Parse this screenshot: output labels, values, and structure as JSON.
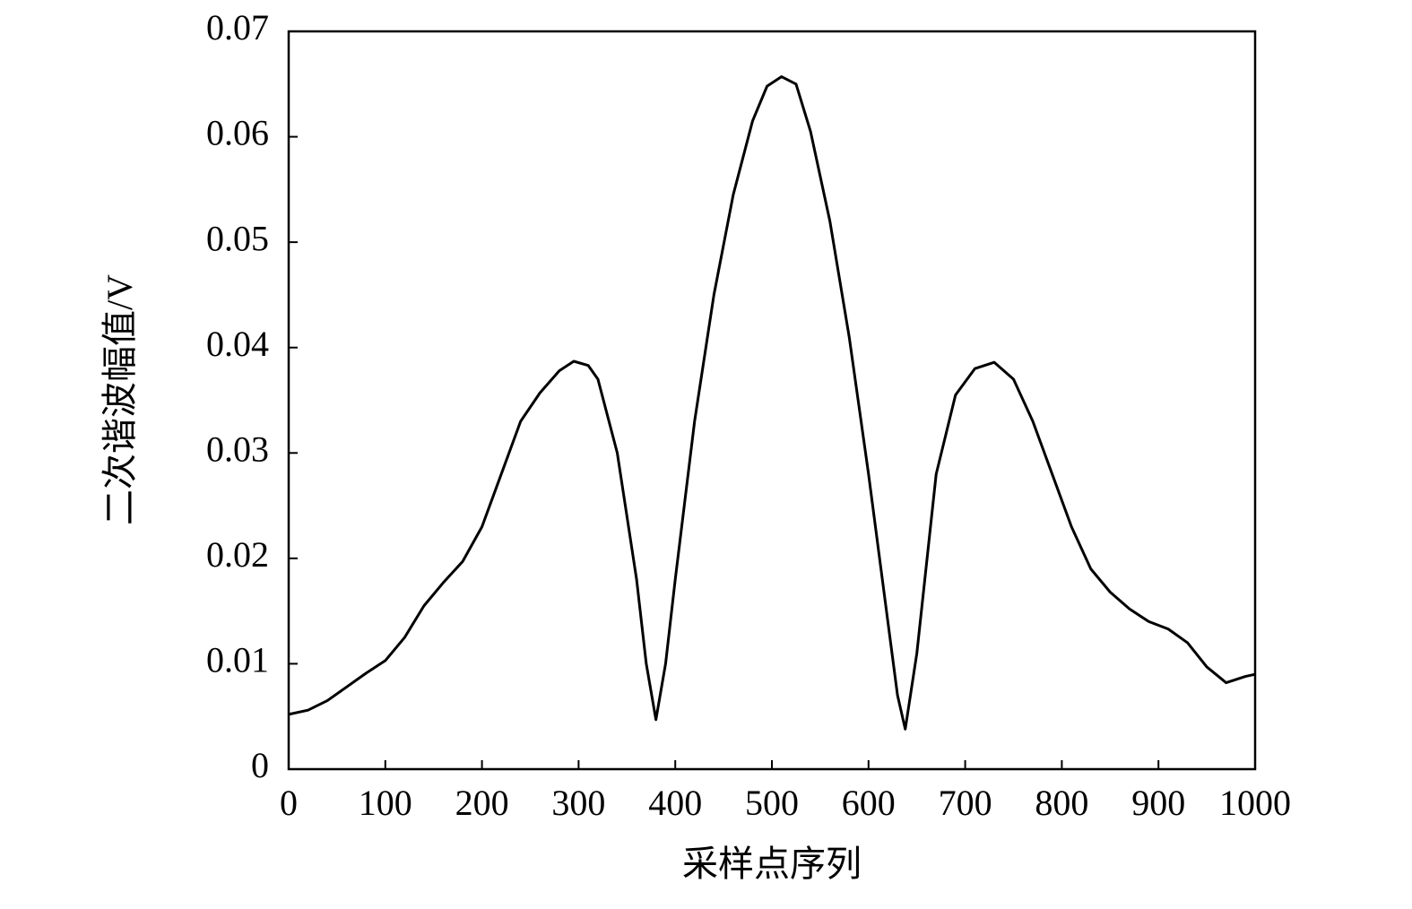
{
  "chart_data": {
    "type": "line",
    "x_label": "采样点序列",
    "y_label": "二次谐波幅值/V",
    "x": [
      0,
      20,
      40,
      60,
      80,
      100,
      120,
      140,
      160,
      180,
      200,
      220,
      240,
      260,
      280,
      295,
      310,
      320,
      340,
      360,
      370,
      380,
      390,
      400,
      420,
      440,
      460,
      480,
      495,
      510,
      525,
      540,
      560,
      580,
      600,
      620,
      630,
      638,
      650,
      670,
      690,
      710,
      730,
      750,
      770,
      790,
      810,
      830,
      850,
      870,
      890,
      910,
      930,
      950,
      970,
      990,
      1000
    ],
    "series": [
      {
        "color": "#000000",
        "values": [
          0.0052,
          0.0056,
          0.0065,
          0.0078,
          0.0091,
          0.0103,
          0.0125,
          0.0155,
          0.0177,
          0.0197,
          0.023,
          0.028,
          0.033,
          0.0357,
          0.0378,
          0.0387,
          0.0383,
          0.037,
          0.03,
          0.018,
          0.01,
          0.0047,
          0.01,
          0.018,
          0.033,
          0.045,
          0.0545,
          0.0615,
          0.0648,
          0.0657,
          0.065,
          0.0605,
          0.052,
          0.041,
          0.028,
          0.014,
          0.007,
          0.0038,
          0.011,
          0.028,
          0.0355,
          0.038,
          0.0386,
          0.037,
          0.033,
          0.028,
          0.023,
          0.019,
          0.0168,
          0.0152,
          0.014,
          0.0133,
          0.012,
          0.0097,
          0.0082,
          0.0088,
          0.009
        ]
      }
    ],
    "xlim": [
      0,
      1000
    ],
    "xticks": [
      0,
      100,
      200,
      300,
      400,
      500,
      600,
      700,
      800,
      900,
      1000
    ],
    "ylim": [
      0,
      0.07
    ],
    "yticks": [
      0,
      0.01,
      0.02,
      0.03,
      0.04,
      0.05,
      0.06,
      0.07
    ]
  }
}
